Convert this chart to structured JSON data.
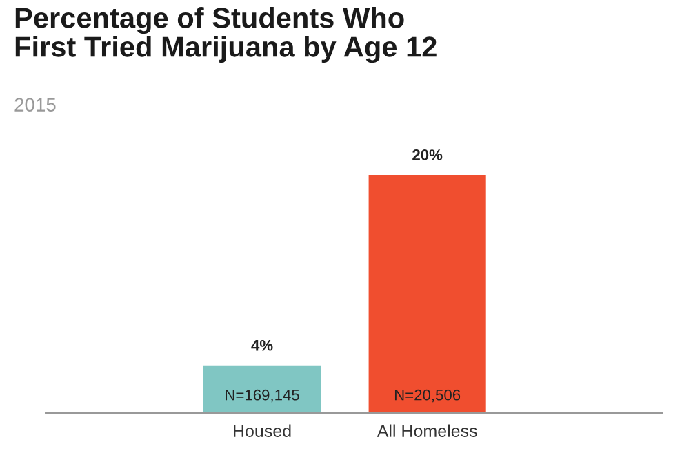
{
  "chart_data": {
    "type": "bar",
    "title": "Percentage of Students Who\nFirst Tried Marijuana by Age 12",
    "subtitle": "2015",
    "categories": [
      "Housed",
      "All Homeless"
    ],
    "values": [
      4,
      20
    ],
    "colors": [
      "#80c6c3",
      "#f04e2f"
    ],
    "value_labels": [
      "4%",
      "20%"
    ],
    "annotations": [
      {
        "text": "N=169,145",
        "x": "Housed",
        "y": 0
      },
      {
        "text": "N=20,506",
        "x": "All Homeless",
        "y": 0
      }
    ],
    "grid": false,
    "legend": false
  }
}
